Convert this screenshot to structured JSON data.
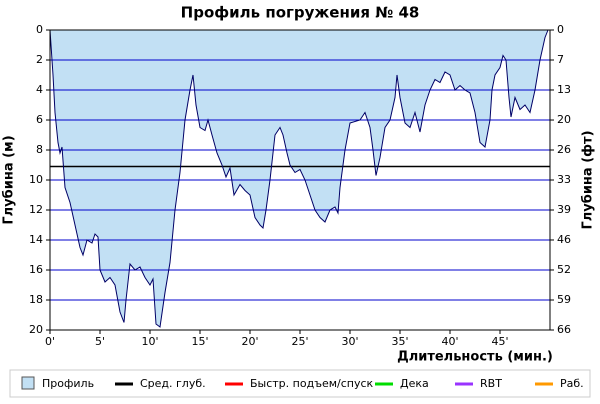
{
  "chart_data": {
    "type": "area",
    "title": "Профиль погружения № 48",
    "x_label": "Длительность (мин.)",
    "y_label": "Глубина (м)",
    "y2_label": "Глубина (фт)",
    "x": [
      0,
      0.3,
      0.5,
      0.8,
      1.0,
      1.2,
      1.5,
      2,
      2.5,
      3,
      3.3,
      3.7,
      4.2,
      4.5,
      4.8,
      5.0,
      5.5,
      6.0,
      6.5,
      7.0,
      7.4,
      7.6,
      8.0,
      8.5,
      9.0,
      9.5,
      10.0,
      10.3,
      10.6,
      11.0,
      11.5,
      12.0,
      12.5,
      13,
      13.5,
      14.0,
      14.3,
      14.6,
      15,
      15.5,
      15.8,
      16.2,
      16.7,
      17.2,
      17.6,
      18.0,
      18.4,
      19.0,
      19.5,
      20.0,
      20.5,
      21.0,
      21.3,
      21.6,
      22.0,
      22.5,
      23.0,
      23.3,
      23.7,
      24.0,
      24.5,
      25,
      25.5,
      26,
      26.5,
      27,
      27.5,
      28,
      28.5,
      28.8,
      29.0,
      29.5,
      30,
      31,
      31.5,
      32,
      32.3,
      32.6,
      33,
      33.5,
      34,
      34.5,
      34.7,
      35.0,
      35.5,
      36,
      36.5,
      37,
      37.5,
      38,
      38.5,
      39,
      39.5,
      40,
      40.5,
      41,
      41.5,
      42,
      42.5,
      43,
      43.5,
      44,
      44.2,
      44.5,
      45,
      45.3,
      45.6,
      45.9,
      46.1,
      46.5,
      47,
      47.5,
      48,
      48.5,
      49,
      49.5,
      49.8
    ],
    "series": [
      {
        "name": "Профиль",
        "color": "#c2e0f4",
        "line_color": "#000066",
        "values": [
          0,
          3,
          5.5,
          7.5,
          8.2,
          7.8,
          10.5,
          11.5,
          13,
          14.5,
          15,
          14,
          14.2,
          13.6,
          13.8,
          16,
          16.8,
          16.5,
          17,
          18.8,
          19.5,
          18,
          15.6,
          16,
          15.8,
          16.5,
          17,
          16.6,
          19.6,
          19.8,
          17.5,
          15.5,
          12,
          9.5,
          6,
          4,
          3,
          5,
          6.5,
          6.7,
          6,
          7,
          8.2,
          9,
          9.8,
          9.2,
          11,
          10.3,
          10.7,
          11,
          12.5,
          13,
          13.2,
          12,
          10,
          7,
          6.5,
          7,
          8.2,
          9,
          9.5,
          9.3,
          10,
          11,
          12,
          12.5,
          12.8,
          12,
          11.8,
          12.2,
          10.5,
          8,
          6.2,
          6,
          5.5,
          6.5,
          8,
          9.7,
          8.5,
          6.5,
          6,
          4.5,
          3,
          4.5,
          6.2,
          6.5,
          5.5,
          6.8,
          5,
          4,
          3.3,
          3.5,
          2.8,
          3,
          4,
          3.7,
          4,
          4.2,
          5.5,
          7.5,
          7.8,
          6,
          4,
          3,
          2.5,
          1.7,
          2,
          4.5,
          5.8,
          4.5,
          5.3,
          5,
          5.5,
          4,
          2,
          0.5,
          0
        ]
      }
    ],
    "avg_depth": {
      "name": "Сред. глуб.",
      "color": "#000000",
      "value": 9.1
    },
    "legend_extra": [
      {
        "name": "Быстр. подъем/спуск",
        "color": "#ff0000"
      },
      {
        "name": "Дека",
        "color": "#00dd00"
      },
      {
        "name": "RBT",
        "color": "#9933ff"
      },
      {
        "name": "Раб.",
        "color": "#ff9900"
      }
    ],
    "xlim": [
      0,
      50
    ],
    "xticks": [
      {
        "value": 0,
        "label": "0'"
      },
      {
        "value": 5,
        "label": "5'"
      },
      {
        "value": 10,
        "label": "10'"
      },
      {
        "value": 15,
        "label": "15'"
      },
      {
        "value": 20,
        "label": "20'"
      },
      {
        "value": 25,
        "label": "25'"
      },
      {
        "value": 30,
        "label": "30'"
      },
      {
        "value": 35,
        "label": "35'"
      },
      {
        "value": 40,
        "label": "40'"
      },
      {
        "value": 45,
        "label": "45'"
      }
    ],
    "ylim": [
      0,
      20
    ],
    "y_inverted": true,
    "yticks": [
      0,
      2,
      4,
      6,
      8,
      10,
      12,
      14,
      16,
      18,
      20
    ],
    "y2lim": [
      0,
      65.62
    ],
    "y2ticks": [
      {
        "value": 0,
        "label": "0"
      },
      {
        "value": 6.56,
        "label": "7"
      },
      {
        "value": 13.12,
        "label": "13"
      },
      {
        "value": 19.69,
        "label": "20"
      },
      {
        "value": 26.25,
        "label": "26"
      },
      {
        "value": 32.81,
        "label": "33"
      },
      {
        "value": 39.37,
        "label": "39"
      },
      {
        "value": 45.93,
        "label": "46"
      },
      {
        "value": 52.49,
        "label": "52"
      },
      {
        "value": 59.06,
        "label": "59"
      },
      {
        "value": 65.62,
        "label": "66"
      }
    ],
    "grid": true,
    "grid_color": "#0000cc"
  }
}
